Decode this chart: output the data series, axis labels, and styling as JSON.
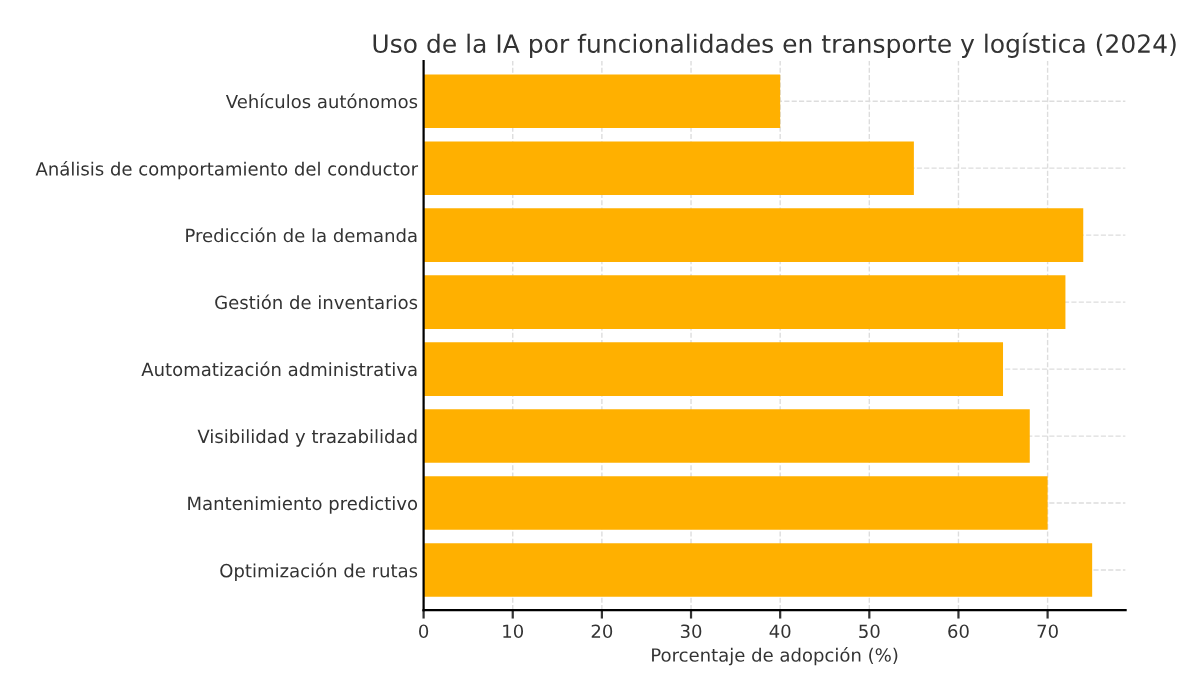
{
  "chart_data": {
    "type": "bar",
    "orientation": "horizontal",
    "title": "Uso de la IA por funcionalidades en transporte y logística (2024)",
    "xlabel": "Porcentaje de adopción (%)",
    "categories": [
      "Vehículos autónomos",
      "Análisis de comportamiento del conductor",
      "Predicción de la demanda",
      "Gestión de inventarios",
      "Automatización administrativa",
      "Visibilidad y trazabilidad",
      "Mantenimiento predictivo",
      "Optimización de rutas"
    ],
    "values": [
      40,
      55,
      74,
      72,
      65,
      68,
      70,
      75
    ],
    "color": "#ffb000",
    "xlim": [
      0,
      78.75
    ],
    "xticks": [
      0,
      10,
      20,
      30,
      40,
      50,
      60,
      70
    ],
    "grid": true
  }
}
